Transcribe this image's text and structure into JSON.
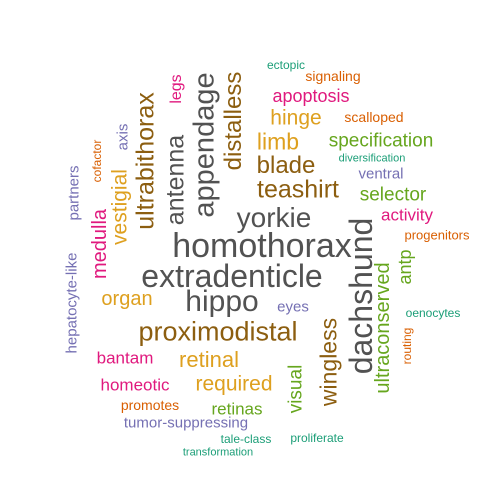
{
  "colors": {
    "dark_gray": "#525252",
    "brown": "#8c5e10",
    "gold": "#dea01f",
    "magenta": "#e0197e",
    "green": "#66a61e",
    "purple": "#7570b3",
    "orange": "#d95f02",
    "teal": "#1b9e77"
  },
  "words": [
    "homothorax",
    "extradenticle",
    "hippo",
    "proximodistal",
    "dachshund",
    "appendage",
    "yorkie",
    "teashirt",
    "ultrabithorax",
    "antenna",
    "distalless",
    "blade",
    "limb",
    "hinge",
    "specification",
    "wingless",
    "retinal",
    "required",
    "ultraconserved",
    "vestigial",
    "organ",
    "selector",
    "medulla",
    "visual",
    "apoptosis",
    "antp",
    "homeotic",
    "bantam",
    "activity",
    "legs",
    "retinas",
    "signaling",
    "scalloped",
    "axis",
    "ventral",
    "eyes",
    "partners",
    "hepatocyte-like",
    "progenitors",
    "tumor-suppressing",
    "promotes",
    "cofactor",
    "ectopic",
    "diversification",
    "oenocytes",
    "routing",
    "tale-class",
    "proliferate",
    "transformation"
  ]
}
